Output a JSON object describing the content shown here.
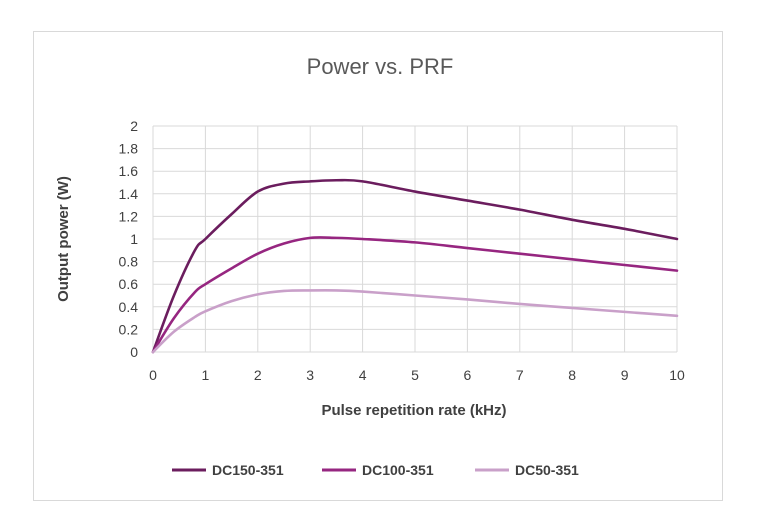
{
  "chart_data": {
    "type": "line",
    "title": "Power vs. PRF",
    "xlabel": "Pulse repetition rate (kHz)",
    "ylabel": "Output power (W)",
    "xlim": [
      0,
      10
    ],
    "ylim": [
      0,
      2
    ],
    "xticks": [
      "0",
      "1",
      "2",
      "3",
      "4",
      "5",
      "6",
      "7",
      "8",
      "9",
      "10"
    ],
    "yticks": [
      "0",
      "0.2",
      "0.4",
      "0.6",
      "0.8",
      "1",
      "1.2",
      "1.4",
      "1.6",
      "1.8",
      "2"
    ],
    "grid": "vertical and horizontal",
    "legend": "bottom",
    "series": [
      {
        "name": "DC150-351",
        "color": "#6b1d5e",
        "x": [
          0,
          0.4,
          0.8,
          1,
          1.5,
          2,
          2.5,
          3,
          3.5,
          4,
          5,
          6,
          7,
          8,
          9,
          10
        ],
        "y": [
          0,
          0.5,
          0.9,
          1.0,
          1.22,
          1.42,
          1.49,
          1.51,
          1.52,
          1.51,
          1.42,
          1.34,
          1.26,
          1.17,
          1.09,
          1.0
        ]
      },
      {
        "name": "DC100-351",
        "color": "#962680",
        "x": [
          0,
          0.4,
          0.8,
          1,
          1.5,
          2,
          2.5,
          3,
          3.5,
          4,
          5,
          6,
          7,
          8,
          9,
          10
        ],
        "y": [
          0,
          0.3,
          0.53,
          0.6,
          0.74,
          0.87,
          0.96,
          1.01,
          1.01,
          1.0,
          0.97,
          0.92,
          0.87,
          0.82,
          0.77,
          0.72
        ]
      },
      {
        "name": "DC50-351",
        "color": "#c9a0c9",
        "x": [
          0,
          0.4,
          0.8,
          1,
          1.5,
          2,
          2.5,
          3,
          3.5,
          4,
          5,
          6,
          7,
          8,
          9,
          10
        ],
        "y": [
          0,
          0.18,
          0.31,
          0.36,
          0.45,
          0.51,
          0.54,
          0.545,
          0.545,
          0.535,
          0.5,
          0.465,
          0.425,
          0.39,
          0.355,
          0.32
        ]
      }
    ]
  }
}
